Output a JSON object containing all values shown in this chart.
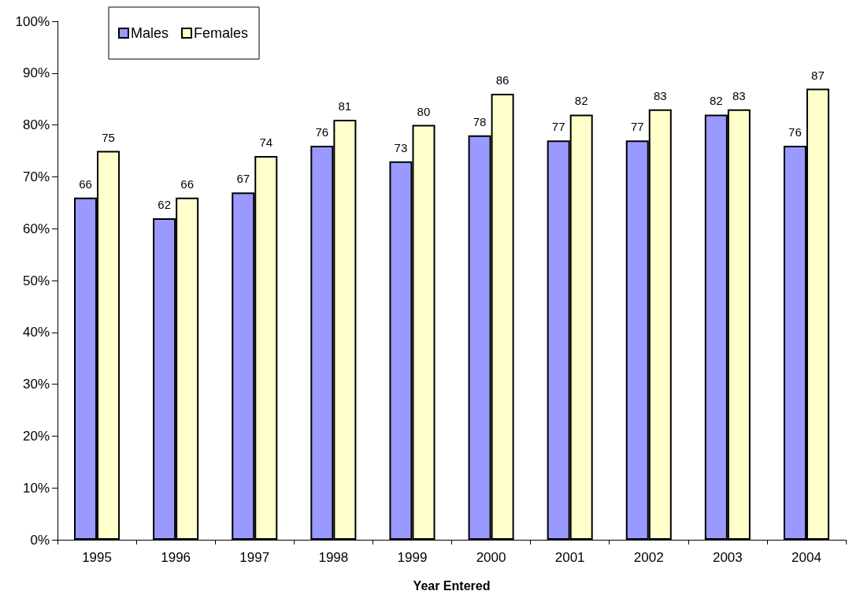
{
  "chart_data": {
    "type": "bar",
    "xlabel": "Year Entered",
    "categories": [
      "1995",
      "1996",
      "1997",
      "1998",
      "1999",
      "2000",
      "2001",
      "2002",
      "2003",
      "2004"
    ],
    "series": [
      {
        "name": "Males",
        "color": "#9999ff",
        "values": [
          66,
          62,
          67,
          76,
          73,
          78,
          77,
          77,
          82,
          76
        ]
      },
      {
        "name": "Females",
        "color": "#ffffcc",
        "values": [
          75,
          66,
          74,
          81,
          80,
          86,
          82,
          83,
          83,
          87
        ]
      }
    ],
    "ylim": [
      0,
      100
    ],
    "yticks": [
      {
        "value": 0,
        "label": "0%"
      },
      {
        "value": 10,
        "label": "10%"
      },
      {
        "value": 20,
        "label": "20%"
      },
      {
        "value": 30,
        "label": "30%"
      },
      {
        "value": 40,
        "label": "40%"
      },
      {
        "value": 50,
        "label": "50%"
      },
      {
        "value": 60,
        "label": "60%"
      },
      {
        "value": 70,
        "label": "70%"
      },
      {
        "value": 80,
        "label": "80%"
      },
      {
        "value": 90,
        "label": "90%"
      },
      {
        "value": 100,
        "label": "100%"
      }
    ],
    "data_labels": true,
    "grid": false,
    "legend": "top left"
  }
}
